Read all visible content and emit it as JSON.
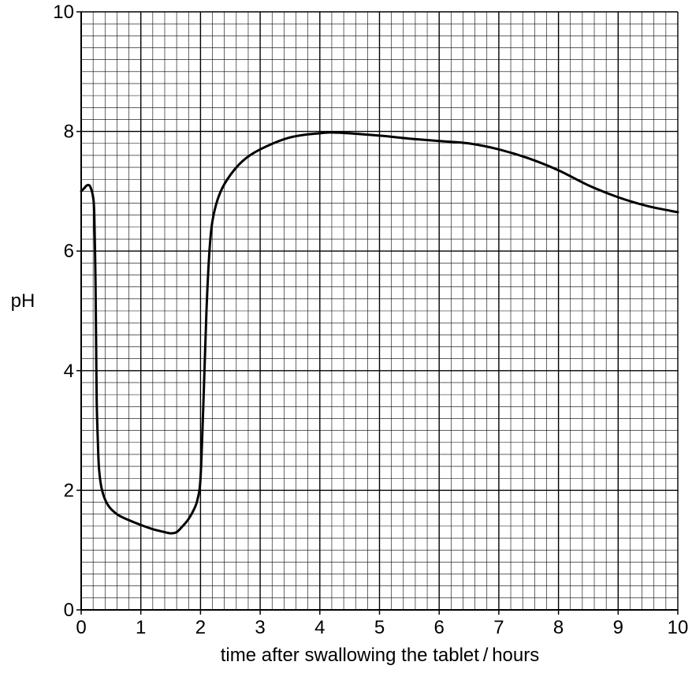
{
  "chart_data": {
    "type": "line",
    "title": "",
    "xlabel": "time after swallowing the tablet / hours",
    "ylabel": "pH",
    "xlim": [
      0,
      10
    ],
    "ylim": [
      0,
      10
    ],
    "x_ticks": [
      0,
      1,
      2,
      3,
      4,
      5,
      6,
      7,
      8,
      9,
      10
    ],
    "y_ticks": [
      0,
      2,
      4,
      6,
      8,
      10
    ],
    "x_tick_labels": [
      "0",
      "1",
      "2",
      "3",
      "4",
      "5",
      "6",
      "7",
      "8",
      "9",
      "10"
    ],
    "y_tick_labels": [
      "0",
      "2",
      "4",
      "6",
      "8",
      "10"
    ],
    "grid": {
      "major_step": 2,
      "minor_step": 0.2
    },
    "series": [
      {
        "name": "",
        "color": "#000000",
        "x": [
          0,
          0.05,
          0.1,
          0.15,
          0.2,
          0.22,
          0.24,
          0.25,
          0.26,
          0.28,
          0.3,
          0.35,
          0.45,
          0.6,
          0.8,
          1.0,
          1.2,
          1.4,
          1.5,
          1.6,
          1.7,
          1.8,
          1.9,
          1.95,
          2.0,
          2.05,
          2.1,
          2.15,
          2.2,
          2.3,
          2.45,
          2.7,
          3.0,
          3.5,
          4.0,
          4.3,
          5.0,
          5.5,
          6.0,
          6.5,
          7.0,
          7.5,
          8.0,
          8.5,
          9.0,
          9.5,
          10.0
        ],
        "y": [
          7.0,
          7.05,
          7.1,
          7.08,
          6.9,
          6.6,
          5.5,
          4.5,
          3.5,
          2.8,
          2.35,
          2.0,
          1.75,
          1.6,
          1.5,
          1.42,
          1.35,
          1.3,
          1.28,
          1.3,
          1.4,
          1.52,
          1.7,
          1.85,
          2.2,
          3.5,
          5.0,
          6.0,
          6.5,
          6.9,
          7.2,
          7.5,
          7.7,
          7.9,
          7.97,
          7.98,
          7.93,
          7.88,
          7.84,
          7.8,
          7.7,
          7.55,
          7.35,
          7.1,
          6.9,
          6.75,
          6.65
        ]
      }
    ]
  }
}
